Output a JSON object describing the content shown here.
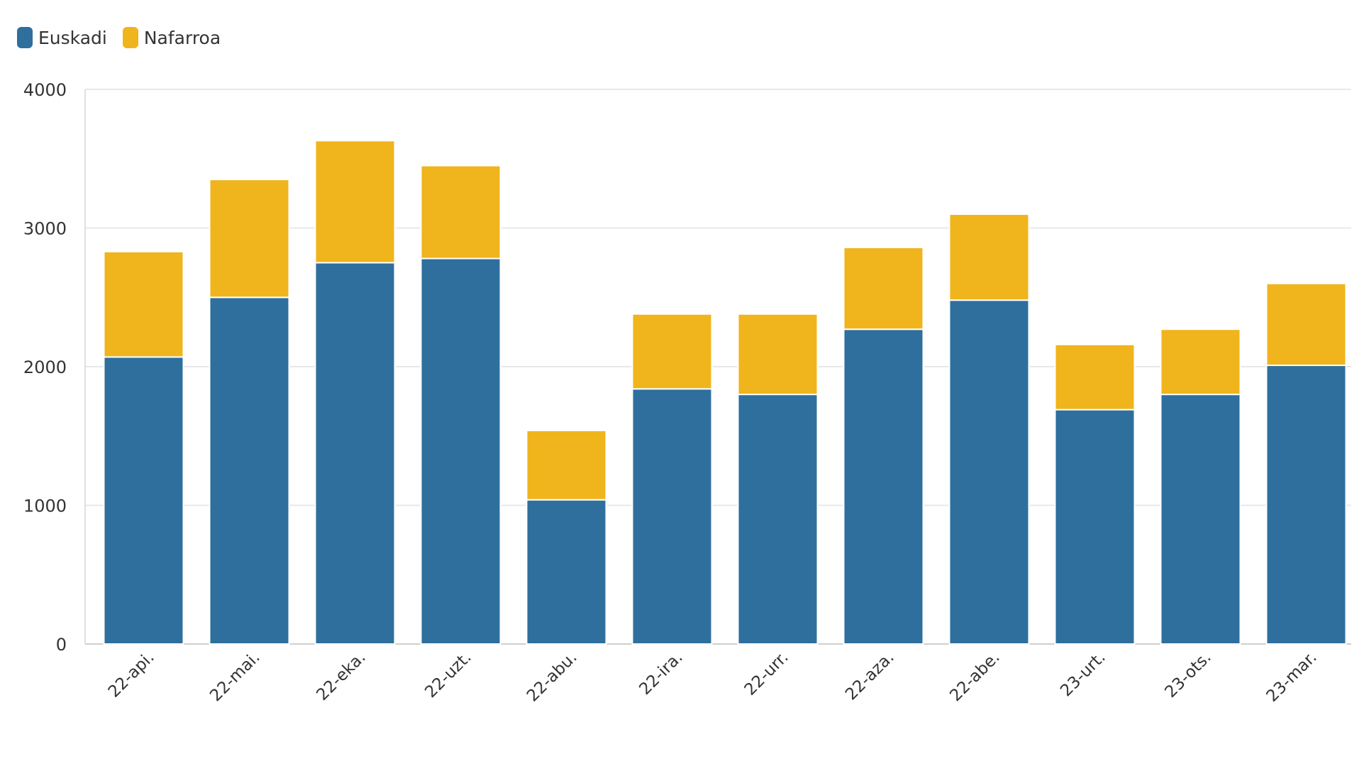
{
  "chart_data": {
    "type": "bar",
    "stacked": true,
    "categories": [
      "22-api.",
      "22-mai.",
      "22-eka.",
      "22-uzt.",
      "22-abu.",
      "22-ira.",
      "22-urr.",
      "22-aza.",
      "22-abe.",
      "23-urt.",
      "23-ots.",
      "23-mar."
    ],
    "series": [
      {
        "name": "Euskadi",
        "color": "#2e6f9e",
        "values": [
          2070,
          2500,
          2750,
          2780,
          1040,
          1840,
          1800,
          2270,
          2480,
          1690,
          1800,
          2010
        ]
      },
      {
        "name": "Nafarroa",
        "color": "#f0b41c",
        "values": [
          760,
          850,
          880,
          670,
          500,
          540,
          580,
          590,
          620,
          470,
          470,
          590
        ]
      }
    ],
    "ylim": [
      0,
      4000
    ],
    "yticks": [
      "0",
      "1000",
      "2000",
      "3000",
      "4000"
    ],
    "grid": true,
    "legend_position": "top-left"
  }
}
